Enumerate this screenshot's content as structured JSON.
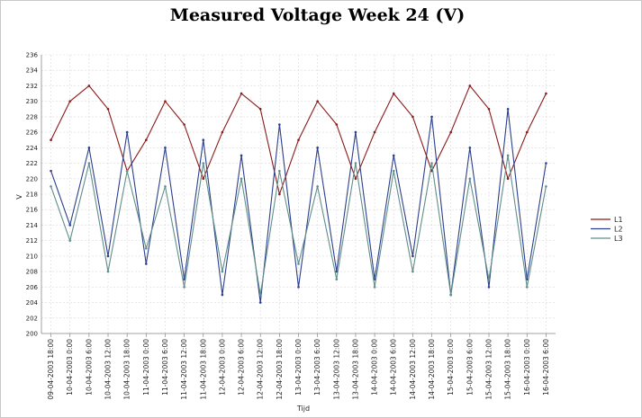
{
  "chart_data": {
    "type": "line",
    "title": "Measured Voltage Week 24 (V)",
    "xlabel": "Tijd",
    "ylabel": "V",
    "ylim": [
      200,
      236
    ],
    "yticks": [
      200,
      202,
      204,
      206,
      208,
      210,
      212,
      214,
      216,
      218,
      220,
      222,
      224,
      226,
      228,
      230,
      232,
      234,
      236
    ],
    "grid": true,
    "legend_position": "right",
    "categories": [
      "09-04-2003 18:00",
      "10-04-2003 0:00",
      "10-04-2003 6:00",
      "10-04-2003 12:00",
      "10-04-2003 18:00",
      "11-04-2003 0:00",
      "11-04-2003 6:00",
      "11-04-2003 12:00",
      "11-04-2003 18:00",
      "12-04-2003 0:00",
      "12-04-2003 6:00",
      "12-04-2003 12:00",
      "12-04-2003 18:00",
      "13-04-2003 0:00",
      "13-04-2003 6:00",
      "13-04-2003 12:00",
      "13-04-2003 18:00",
      "14-04-2003 0:00",
      "14-04-2003 6:00",
      "14-04-2003 12:00",
      "14-04-2003 18:00",
      "15-04-2003 0:00",
      "15-04-2003 6:00",
      "15-04-2003 12:00",
      "15-04-2003 18:00",
      "16-04-2003 0:00",
      "16-04-2003 6:00"
    ],
    "series": [
      {
        "name": "L1",
        "color": "#8b1a1a",
        "values": [
          225,
          230,
          232,
          229,
          221,
          225,
          230,
          227,
          220,
          226,
          231,
          229,
          218,
          225,
          230,
          227,
          220,
          226,
          231,
          228,
          221,
          226,
          232,
          229,
          220,
          226,
          231
        ]
      },
      {
        "name": "L2",
        "color": "#2b3f8c",
        "values": [
          221,
          214,
          224,
          210,
          226,
          209,
          224,
          207,
          225,
          205,
          223,
          204,
          227,
          206,
          224,
          208,
          226,
          207,
          223,
          210,
          228,
          205,
          224,
          206,
          229,
          207,
          222
        ]
      },
      {
        "name": "L3",
        "color": "#5f8f8a",
        "values": [
          219,
          212,
          222,
          208,
          221,
          211,
          219,
          206,
          222,
          208,
          220,
          205,
          221,
          209,
          219,
          207,
          222,
          206,
          221,
          208,
          222,
          205,
          220,
          207,
          223,
          206,
          219
        ]
      }
    ]
  }
}
